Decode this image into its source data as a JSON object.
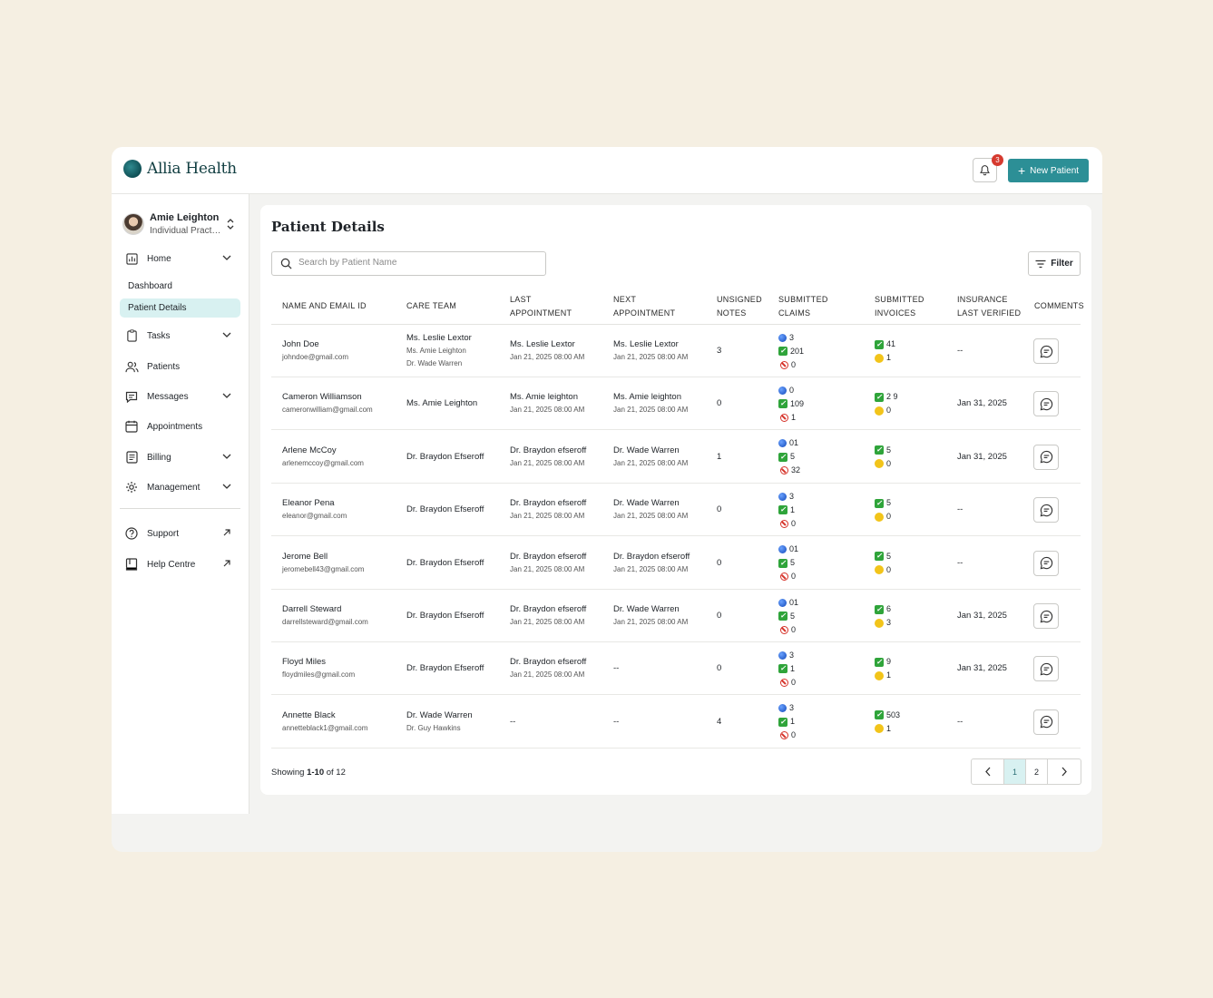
{
  "app": {
    "logo_text": "Allia Health",
    "notification_count": "3",
    "new_patient_label": "New Patient"
  },
  "user": {
    "name": "Amie Leighton",
    "role": "Individual Practitioner"
  },
  "sidebar": {
    "home": "Home",
    "dashboard": "Dashboard",
    "patient_details": "Patient Details",
    "tasks": "Tasks",
    "patients": "Patients",
    "messages": "Messages",
    "appointments": "Appointments",
    "billing": "Billing",
    "management": "Management",
    "support": "Support",
    "help_centre": "Help Centre"
  },
  "page": {
    "title": "Patient Details",
    "search_placeholder": "Search by Patient Name",
    "filter_label": "Filter"
  },
  "table": {
    "headers": {
      "name": "NAME AND EMAIL ID",
      "care_team": "CARE TEAM",
      "last_appt_1": "LAST",
      "last_appt_2": "APPOINTMENT",
      "next_appt_1": "NEXT",
      "next_appt_2": "APPOINTMENT",
      "unsigned_1": "UNSIGNED",
      "unsigned_2": "NOTES",
      "claims_1": "SUBMITTED",
      "claims_2": "CLAIMS",
      "invoices_1": "SUBMITTED",
      "invoices_2": "INVOICES",
      "insurance_1": "INSURANCE",
      "insurance_2": "LAST VERIFIED",
      "comments": "COMMENTS"
    },
    "rows": [
      {
        "name": "John Doe",
        "email": "johndoe@gmail.com",
        "care_main": "Ms. Leslie Lextor",
        "care_sub1": "Ms. Amie Leighton",
        "care_sub2": "Dr. Wade Warren",
        "last_name": "Ms. Leslie Lextor",
        "last_date": "Jan 21, 2025 08:00 AM",
        "next_name": "Ms. Leslie Lextor",
        "next_date": "Jan 21, 2025 08:00 AM",
        "unsigned": "3",
        "claims_blue": "3",
        "claims_green": "201",
        "claims_red": "0",
        "inv_green": "41",
        "inv_yellow": "1",
        "insurance": "--"
      },
      {
        "name": "Cameron Williamson",
        "email": "cameronwilliam@gmail.com",
        "care_main": "Ms. Amie Leighton",
        "care_sub1": "",
        "care_sub2": "",
        "last_name": "Ms. Amie leighton",
        "last_date": "Jan 21, 2025 08:00 AM",
        "next_name": "Ms. Amie leighton",
        "next_date": "Jan 21, 2025 08:00 AM",
        "unsigned": "0",
        "claims_blue": "0",
        "claims_green": "109",
        "claims_red": "1",
        "inv_green": "2 9",
        "inv_yellow": "0",
        "insurance": "Jan 31, 2025"
      },
      {
        "name": "Arlene McCoy",
        "email": "arlenemccoy@gmail.com",
        "care_main": "Dr. Braydon Efseroff",
        "care_sub1": "",
        "care_sub2": "",
        "last_name": "Dr. Braydon efseroff",
        "last_date": "Jan 21, 2025 08:00 AM",
        "next_name": "Dr. Wade Warren",
        "next_date": "Jan 21, 2025 08:00 AM",
        "unsigned": "1",
        "claims_blue": "01",
        "claims_green": "5",
        "claims_red": "32",
        "inv_green": "5",
        "inv_yellow": "0",
        "insurance": "Jan 31, 2025"
      },
      {
        "name": "Eleanor Pena",
        "email": "eleanor@gmail.com",
        "care_main": "Dr. Braydon Efseroff",
        "care_sub1": "",
        "care_sub2": "",
        "last_name": "Dr. Braydon efseroff",
        "last_date": "Jan 21, 2025 08:00 AM",
        "next_name": "Dr. Wade Warren",
        "next_date": "Jan 21, 2025 08:00 AM",
        "unsigned": "0",
        "claims_blue": "3",
        "claims_green": "1",
        "claims_red": "0",
        "inv_green": "5",
        "inv_yellow": "0",
        "insurance": "--"
      },
      {
        "name": "Jerome Bell",
        "email": "jeromebell43@gmail.com",
        "care_main": "Dr. Braydon Efseroff",
        "care_sub1": "",
        "care_sub2": "",
        "last_name": "Dr. Braydon efseroff",
        "last_date": "Jan 21, 2025 08:00 AM",
        "next_name": "Dr. Braydon efseroff",
        "next_date": "Jan 21, 2025 08:00 AM",
        "unsigned": "0",
        "claims_blue": "01",
        "claims_green": "5",
        "claims_red": "0",
        "inv_green": "5",
        "inv_yellow": "0",
        "insurance": "--"
      },
      {
        "name": "Darrell Steward",
        "email": "darrellsteward@gmail.com",
        "care_main": "Dr. Braydon Efseroff",
        "care_sub1": "",
        "care_sub2": "",
        "last_name": "Dr. Braydon efseroff",
        "last_date": "Jan 21, 2025 08:00 AM",
        "next_name": "Dr. Wade Warren",
        "next_date": "Jan 21, 2025 08:00 AM",
        "unsigned": "0",
        "claims_blue": "01",
        "claims_green": "5",
        "claims_red": "0",
        "inv_green": "6",
        "inv_yellow": "3",
        "insurance": "Jan 31, 2025"
      },
      {
        "name": "Floyd Miles",
        "email": "floydmiles@gmail.com",
        "care_main": "Dr. Braydon Efseroff",
        "care_sub1": "",
        "care_sub2": "",
        "last_name": "Dr. Braydon efseroff",
        "last_date": "Jan 21, 2025 08:00 AM",
        "next_name": "--",
        "next_date": "",
        "unsigned": "0",
        "claims_blue": "3",
        "claims_green": "1",
        "claims_red": "0",
        "inv_green": "9",
        "inv_yellow": "1",
        "insurance": "Jan 31, 2025"
      },
      {
        "name": "Annette Black",
        "email": "annetteblack1@gmail.com",
        "care_main": "Dr. Wade Warren",
        "care_sub1": "Dr. Guy Hawkins",
        "care_sub2": "",
        "last_name": "--",
        "last_date": "",
        "next_name": "--",
        "next_date": "",
        "unsigned": "4",
        "claims_blue": "3",
        "claims_green": "1",
        "claims_red": "0",
        "inv_green": "503",
        "inv_yellow": "1",
        "insurance": "--"
      }
    ]
  },
  "footer": {
    "showing_prefix": "Showing ",
    "showing_range": "1-10",
    "showing_suffix": " of 12",
    "page1": "1",
    "page2": "2"
  },
  "colors": {
    "accent": "#2c8f96",
    "active_bg": "#d8f1f1",
    "badge": "#d63a2f"
  }
}
